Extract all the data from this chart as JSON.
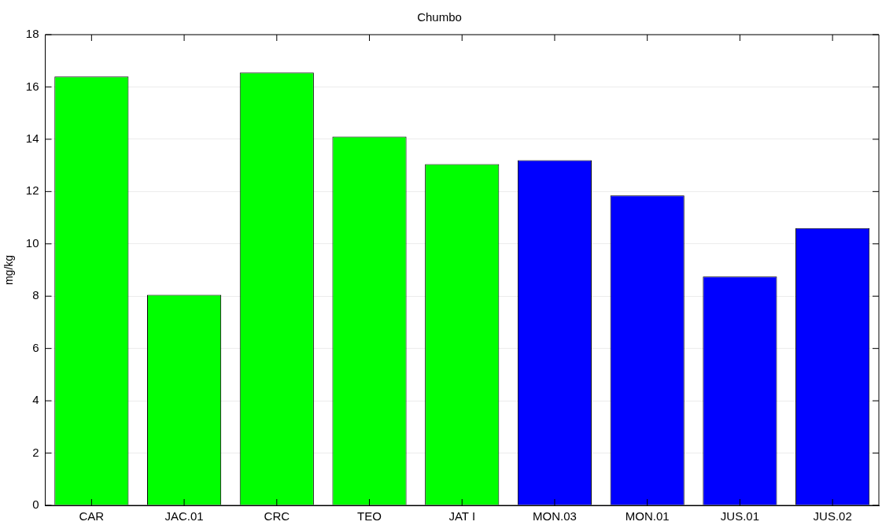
{
  "chart_data": {
    "type": "bar",
    "title": "Chumbo",
    "ylabel": "mg/kg",
    "categories": [
      "CAR",
      "JAC.01",
      "CRC",
      "TEO",
      "JAT I",
      "MON.03",
      "MON.01",
      "JUS.01",
      "JUS.02"
    ],
    "values": [
      16.4,
      8.05,
      16.55,
      14.1,
      13.05,
      13.2,
      11.85,
      8.75,
      10.6
    ],
    "colors": [
      "#00ff00",
      "#00ff00",
      "#00ff00",
      "#00ff00",
      "#00ff00",
      "#0000ff",
      "#0000ff",
      "#0000ff",
      "#0000ff"
    ],
    "ylim": [
      0,
      18
    ],
    "yticks": [
      0,
      2,
      4,
      6,
      8,
      10,
      12,
      14,
      16,
      18
    ],
    "grid": "y",
    "legend": false
  }
}
